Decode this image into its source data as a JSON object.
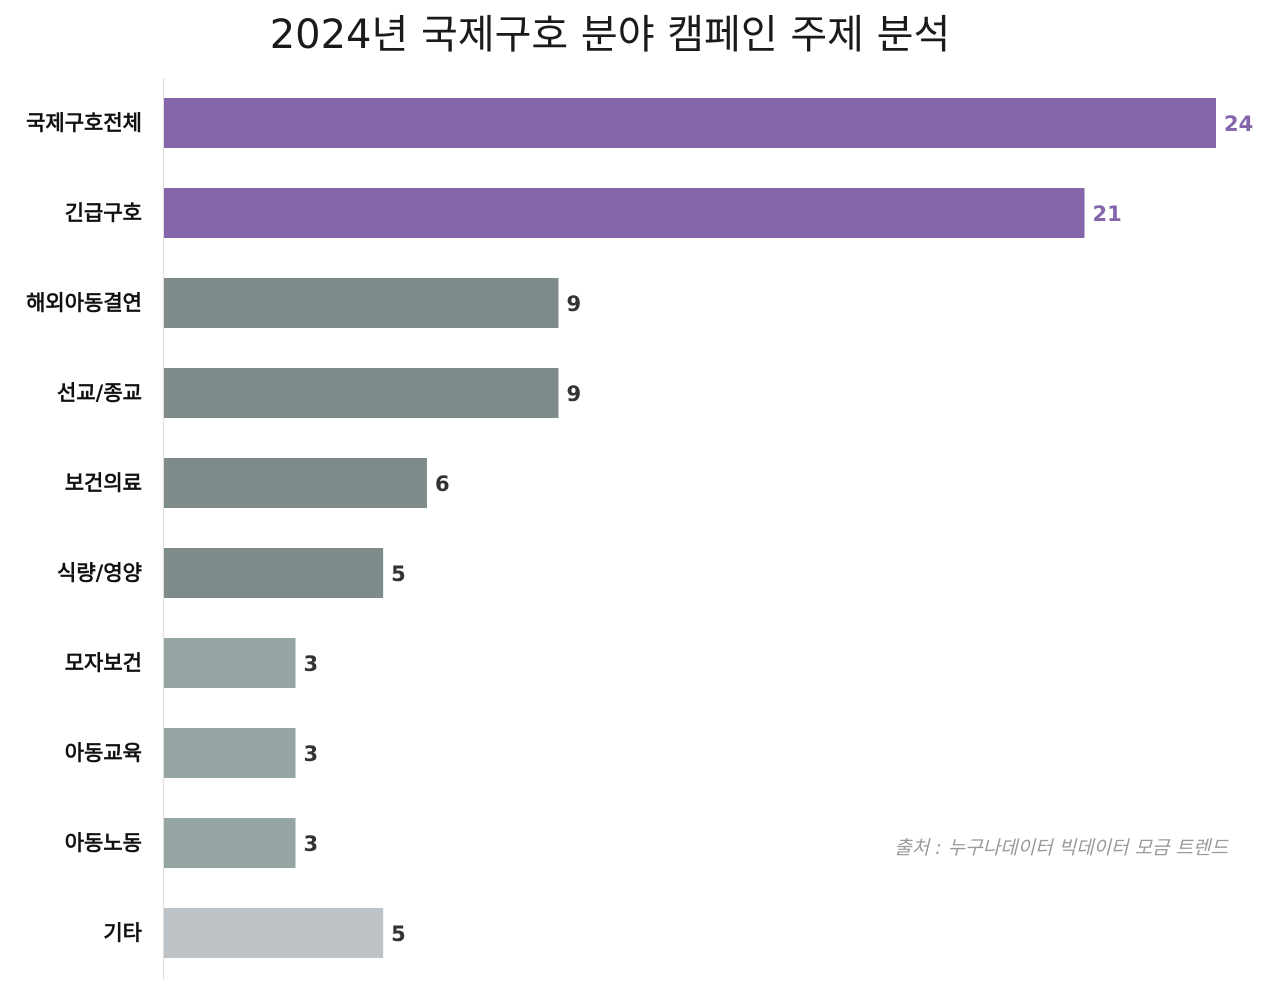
{
  "chart_data": {
    "type": "bar",
    "orientation": "horizontal",
    "title": "2024년 국제구호 분야 캠페인 주제 분석",
    "categories": [
      "국제구호전체",
      "긴급구호",
      "해외아동결연",
      "선교/종교",
      "보건의료",
      "식량/영양",
      "모자보건",
      "아동교육",
      "아동노동",
      "기타"
    ],
    "values": [
      24,
      21,
      9,
      9,
      6,
      5,
      3,
      3,
      3,
      5
    ],
    "colors": [
      "#8566AA",
      "#8566AA",
      "#7E8B8B",
      "#7E8B8B",
      "#7E8B8B",
      "#7E8B8B",
      "#95A5A3",
      "#95A5A3",
      "#95A5A3",
      "#BDC3C7"
    ],
    "label_colors": [
      "#8566AA",
      "#8566AA",
      "#333333",
      "#333333",
      "#333333",
      "#333333",
      "#333333",
      "#333333",
      "#333333",
      "#333333"
    ],
    "xlim": [
      0,
      24
    ],
    "grid": false,
    "xlabel": "",
    "ylabel": "",
    "source": "출처 : 누구나데이터 빅데이터 모금 트렌드"
  }
}
